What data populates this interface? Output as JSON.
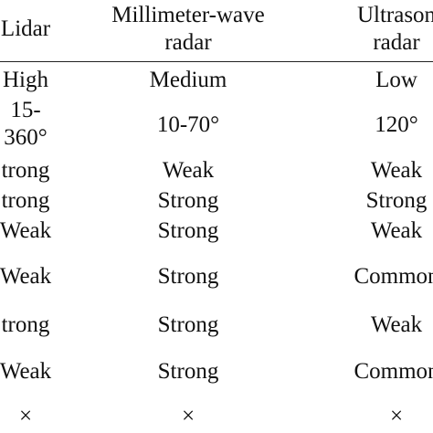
{
  "header": {
    "col1": [
      "Lidar"
    ],
    "col2": [
      "Millimeter-wave",
      "radar"
    ],
    "col3": [
      "Ultrason",
      "radar"
    ]
  },
  "rows": [
    {
      "col1": [
        "High"
      ],
      "col2": [
        "Medium"
      ],
      "col3": [
        "Low"
      ]
    },
    {
      "col1": [
        "15-",
        "360°"
      ],
      "col2": [
        "10-70°"
      ],
      "col3": [
        "120°"
      ]
    },
    {
      "col1": [
        "trong"
      ],
      "col2": [
        "Weak"
      ],
      "col3": [
        "Weak"
      ]
    },
    {
      "col1": [
        "trong"
      ],
      "col2": [
        "Strong"
      ],
      "col3": [
        "Strong"
      ]
    },
    {
      "col1": [
        "Weak"
      ],
      "col2": [
        "Strong"
      ],
      "col3": [
        "Weak"
      ]
    },
    {
      "col1": [
        "Weak"
      ],
      "col2": [
        "Strong"
      ],
      "col3": [
        "Common"
      ]
    },
    {
      "col1": [
        "trong"
      ],
      "col2": [
        "Strong"
      ],
      "col3": [
        "Weak"
      ]
    },
    {
      "col1": [
        "Weak"
      ],
      "col2": [
        "Strong"
      ],
      "col3": [
        "Common"
      ]
    },
    {
      "col1": [
        "×"
      ],
      "col2": [
        "×"
      ],
      "col3": [
        "×"
      ]
    }
  ]
}
